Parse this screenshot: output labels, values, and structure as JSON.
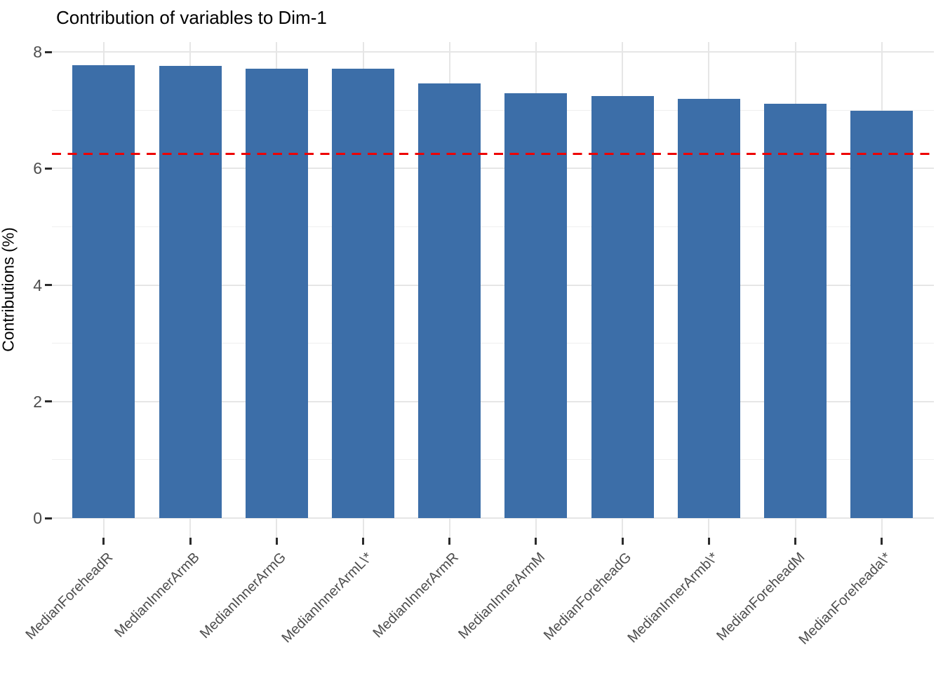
{
  "chart_data": {
    "type": "bar",
    "title": "Contribution of variables to Dim-1",
    "xlabel": "",
    "ylabel": "Contributions (%)",
    "categories": [
      "MedianForeheadR",
      "MedianInnerArmB",
      "MedianInnerArmG",
      "MedianInnerArmL\\*",
      "MedianInnerArmR",
      "MedianInnerArmM",
      "MedianForeheadG",
      "MedianInnerArmb\\*",
      "MedianForeheadM",
      "MedianForeheada\\*"
    ],
    "values": [
      7.77,
      7.76,
      7.71,
      7.71,
      7.46,
      7.29,
      7.24,
      7.2,
      7.11,
      6.99
    ],
    "y_ticks": [
      0,
      2,
      4,
      6,
      8
    ],
    "y_minor_ticks": [
      1,
      3,
      5,
      7
    ],
    "ylim": [
      -0.33,
      8.18
    ],
    "grid": "on",
    "legend": "none",
    "bar_color": "#3c6ea8",
    "reference_line": {
      "value": 6.25,
      "style": "dashed",
      "color": "#ee0000"
    }
  }
}
